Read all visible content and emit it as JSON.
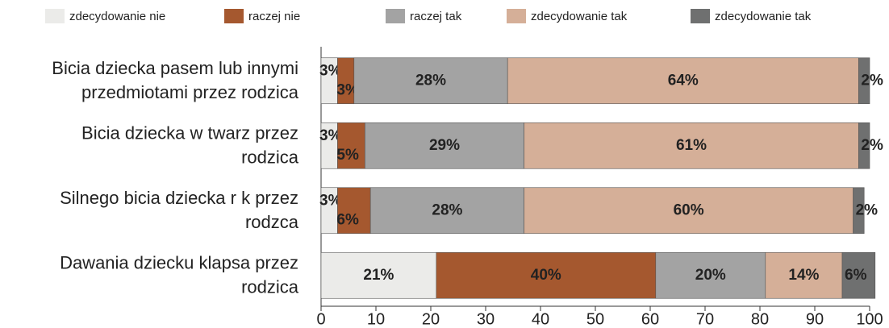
{
  "chart_data": {
    "type": "stacked_bar_horizontal",
    "categories": [
      [
        "Bicia dziecka pasem lub innymi",
        "przedmiotami przez rodzica"
      ],
      [
        "Bicia dziecka w twarz przez",
        "rodzica"
      ],
      [
        "Silnego bicia dziecka r  k   przez",
        "rodzca"
      ],
      [
        "Dawania dziecku klapsa przez",
        "rodzica"
      ]
    ],
    "series": [
      {
        "name": "zdecydowanie nie",
        "color": "#ebebe9",
        "values": [
          3,
          3,
          3,
          21
        ],
        "value_labels": [
          "3%",
          "3%",
          "3%",
          "21%"
        ]
      },
      {
        "name": "raczej nie",
        "color": "#a5582f",
        "values": [
          3,
          5,
          6,
          40
        ],
        "value_labels": [
          "3%",
          "5%",
          "6%",
          "40%"
        ]
      },
      {
        "name": "raczej tak",
        "color": "#a3a3a3",
        "values": [
          28,
          29,
          28,
          20
        ],
        "value_labels": [
          "28%",
          "29%",
          "28%",
          "20%"
        ]
      },
      {
        "name": "zdecydowanie tak",
        "color": "#d5af98",
        "values": [
          64,
          61,
          60,
          14
        ],
        "value_labels": [
          "64%",
          "61%",
          "60%",
          "14%"
        ]
      },
      {
        "name": "zdecydowanie tak",
        "color": "#6f7070",
        "values": [
          2,
          2,
          2,
          6
        ],
        "value_labels": [
          "2%",
          "2%",
          "2%",
          "6%"
        ]
      }
    ],
    "xlim": [
      0,
      100
    ],
    "xticks": [
      0,
      10,
      20,
      30,
      40,
      50,
      60,
      70,
      80,
      90,
      100
    ]
  }
}
